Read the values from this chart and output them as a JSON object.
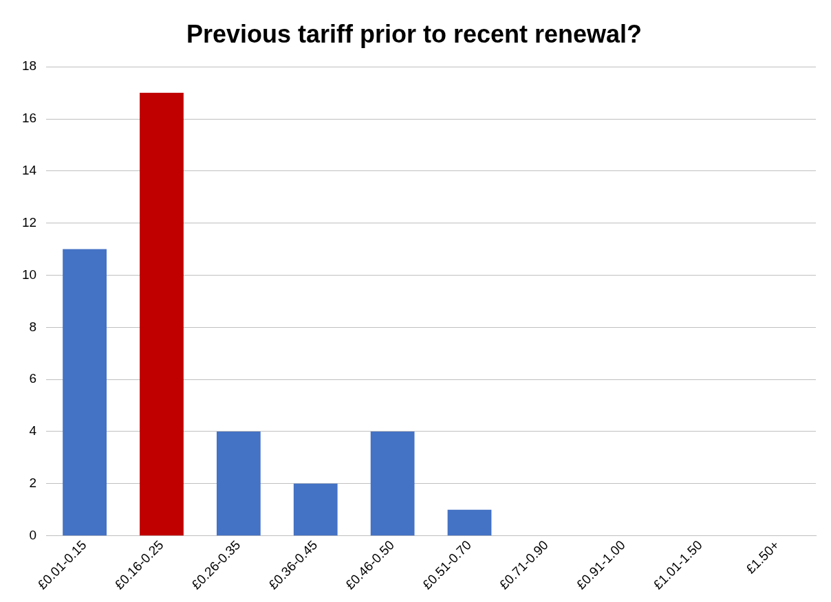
{
  "chart_data": {
    "type": "bar",
    "title": "Previous tariff prior to recent renewal?",
    "categories": [
      "£0.01-0.15",
      "£0.16-0.25",
      "£0.26-0.35",
      "£0.36-0.45",
      "£0.46-0.50",
      "£0.51-0.70",
      "£0.71-0.90",
      "£0.91-1.00",
      "£1.01-1.50",
      "£1.50+"
    ],
    "values": [
      11,
      17,
      4,
      2,
      4,
      1,
      0,
      0,
      0,
      0
    ],
    "colors": [
      "#4472c4",
      "#c00000",
      "#4472c4",
      "#4472c4",
      "#4472c4",
      "#4472c4",
      "#4472c4",
      "#4472c4",
      "#4472c4",
      "#4472c4"
    ],
    "ylim": [
      0,
      18
    ],
    "yticks": [
      0,
      2,
      4,
      6,
      8,
      10,
      12,
      14,
      16,
      18
    ],
    "grid": "y",
    "legend": false
  }
}
